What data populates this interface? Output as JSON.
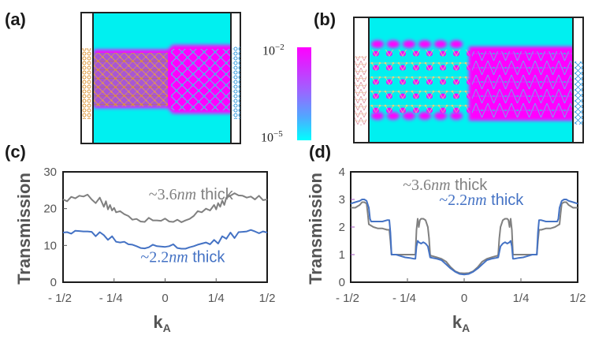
{
  "panels": {
    "a": {
      "label": "(a)"
    },
    "b": {
      "label": "(b)"
    },
    "c": {
      "label": "(c)"
    },
    "d": {
      "label": "(d)"
    }
  },
  "colorbar": {
    "max_label_base": "10",
    "max_label_exp": "−2",
    "min_label_base": "10",
    "min_label_exp": "−5",
    "color_high": "#ff00ff",
    "color_low": "#00ffff",
    "max_value": 0.01,
    "min_value": 1e-05,
    "scale": "log"
  },
  "colors": {
    "thick36": "#808080",
    "thick22": "#4472c4",
    "cyan_background": "#00f0f0",
    "magenta_density": "#ff00ff",
    "left_lead_atoms": "#e09a3a",
    "right_lead_atoms": "#3a9ee0"
  },
  "chart_data": [
    {
      "id": "c",
      "type": "line",
      "title": "",
      "xlabel": "k",
      "xlabel_sub": "A",
      "ylabel": "Transmission",
      "xlim": [
        -0.5,
        0.5
      ],
      "ylim": [
        0,
        30
      ],
      "grid": false,
      "xticks": [
        -0.5,
        -0.25,
        0,
        0.25,
        0.5
      ],
      "xtick_labels": [
        "- 1/2",
        "- 1/4",
        "0",
        "1/4",
        "1/2"
      ],
      "yticks": [
        0,
        10,
        20,
        30
      ],
      "ytick_labels": [
        "0",
        "10",
        "20",
        "30"
      ],
      "annotations": [
        {
          "series": "~3.6nm thick",
          "prefix": "~3.6",
          "italic": "nm",
          "suffix": " thick",
          "x": -0.08,
          "y": 22.5,
          "color": "#808080"
        },
        {
          "series": "~2.2nm thick",
          "prefix": "~2.2",
          "italic": "nm",
          "suffix": " thick",
          "x": -0.12,
          "y": 5.5,
          "color": "#4472c4"
        }
      ],
      "series": [
        {
          "name": "~3.6nm thick",
          "color": "#808080",
          "x": [
            -0.5,
            -0.48,
            -0.46,
            -0.44,
            -0.42,
            -0.4,
            -0.38,
            -0.36,
            -0.34,
            -0.32,
            -0.3,
            -0.29,
            -0.28,
            -0.27,
            -0.26,
            -0.25,
            -0.24,
            -0.22,
            -0.2,
            -0.18,
            -0.16,
            -0.14,
            -0.12,
            -0.1,
            -0.08,
            -0.06,
            -0.04,
            -0.02,
            0.0,
            0.02,
            0.04,
            0.06,
            0.08,
            0.1,
            0.12,
            0.14,
            0.16,
            0.18,
            0.2,
            0.22,
            0.24,
            0.25,
            0.26,
            0.27,
            0.28,
            0.29,
            0.3,
            0.32,
            0.34,
            0.36,
            0.38,
            0.4,
            0.42,
            0.44,
            0.46,
            0.48,
            0.5
          ],
          "y": [
            22.5,
            22.0,
            23.2,
            22.8,
            23.5,
            23.3,
            23.8,
            22.5,
            21.5,
            23.0,
            20.5,
            22.0,
            19.8,
            21.0,
            19.5,
            20.2,
            19.0,
            19.3,
            18.5,
            18.0,
            17.0,
            17.2,
            16.5,
            16.4,
            17.5,
            16.8,
            16.8,
            16.7,
            17.3,
            16.5,
            16.4,
            17.0,
            16.3,
            16.8,
            17.2,
            18.0,
            19.3,
            19.0,
            20.0,
            19.5,
            21.0,
            19.8,
            21.5,
            20.5,
            22.2,
            21.0,
            23.0,
            23.5,
            24.2,
            23.6,
            23.5,
            23.0,
            23.3,
            22.5,
            23.5,
            22.3,
            22.5
          ]
        },
        {
          "name": "~2.2nm thick",
          "color": "#4472c4",
          "x": [
            -0.5,
            -0.48,
            -0.46,
            -0.44,
            -0.42,
            -0.4,
            -0.38,
            -0.36,
            -0.34,
            -0.32,
            -0.3,
            -0.28,
            -0.26,
            -0.24,
            -0.22,
            -0.2,
            -0.18,
            -0.16,
            -0.14,
            -0.12,
            -0.1,
            -0.08,
            -0.06,
            -0.04,
            -0.02,
            0.0,
            0.02,
            0.04,
            0.06,
            0.08,
            0.1,
            0.12,
            0.14,
            0.16,
            0.18,
            0.2,
            0.22,
            0.24,
            0.26,
            0.28,
            0.3,
            0.32,
            0.34,
            0.36,
            0.38,
            0.4,
            0.42,
            0.44,
            0.46,
            0.48,
            0.5
          ],
          "y": [
            13.5,
            13.6,
            13.2,
            14.0,
            13.9,
            13.8,
            13.8,
            13.7,
            12.5,
            13.6,
            12.8,
            11.5,
            12.5,
            11.0,
            10.8,
            11.0,
            10.3,
            10.2,
            9.8,
            9.3,
            9.2,
            9.5,
            10.2,
            9.8,
            9.7,
            9.6,
            9.8,
            10.3,
            9.3,
            9.1,
            9.1,
            9.5,
            9.8,
            10.2,
            10.5,
            10.8,
            10.3,
            11.5,
            10.5,
            12.5,
            11.8,
            13.5,
            12.0,
            13.6,
            13.7,
            13.8,
            14.2,
            13.8,
            13.3,
            13.8,
            13.5
          ]
        }
      ]
    },
    {
      "id": "d",
      "type": "line",
      "title": "",
      "xlabel": "k",
      "xlabel_sub": "A",
      "ylabel": "Transmission",
      "xlim": [
        -0.5,
        0.5
      ],
      "ylim": [
        0,
        4
      ],
      "grid": false,
      "xticks": [
        -0.5,
        -0.25,
        0,
        0.25,
        0.5
      ],
      "xtick_labels": [
        "- 1/2",
        "- 1/4",
        "0",
        "1/4",
        "1/2"
      ],
      "yticks": [
        0,
        1,
        2,
        3,
        4
      ],
      "ytick_labels": [
        "0",
        "1",
        "2",
        "3",
        "4"
      ],
      "annotations": [
        {
          "series": "~3.6nm thick",
          "prefix": "~3.6",
          "italic": "nm",
          "suffix": " thick",
          "x": -0.27,
          "y": 3.35,
          "color": "#808080"
        },
        {
          "series": "~2.2nm thick",
          "prefix": "~2.2",
          "italic": "nm",
          "suffix": " thick",
          "x": -0.11,
          "y": 2.8,
          "color": "#4472c4"
        }
      ],
      "series": [
        {
          "name": "~3.6nm thick",
          "color": "#808080",
          "x": [
            -0.5,
            -0.48,
            -0.46,
            -0.45,
            -0.44,
            -0.43,
            -0.425,
            -0.42,
            -0.4,
            -0.38,
            -0.36,
            -0.34,
            -0.33,
            -0.325,
            -0.32,
            -0.3,
            -0.28,
            -0.26,
            -0.24,
            -0.22,
            -0.215,
            -0.21,
            -0.205,
            -0.2,
            -0.195,
            -0.19,
            -0.18,
            -0.17,
            -0.16,
            -0.155,
            -0.15,
            -0.145,
            -0.14,
            -0.12,
            -0.1,
            -0.08,
            -0.06,
            -0.04,
            -0.02,
            0.0,
            0.02,
            0.04,
            0.06,
            0.08,
            0.1,
            0.12,
            0.14,
            0.145,
            0.15,
            0.155,
            0.16,
            0.17,
            0.18,
            0.19,
            0.195,
            0.2,
            0.205,
            0.21,
            0.215,
            0.22,
            0.24,
            0.26,
            0.28,
            0.3,
            0.32,
            0.325,
            0.33,
            0.34,
            0.36,
            0.38,
            0.4,
            0.42,
            0.425,
            0.43,
            0.44,
            0.45,
            0.46,
            0.48,
            0.5
          ],
          "y": [
            2.7,
            2.7,
            2.8,
            2.9,
            2.9,
            2.85,
            2.5,
            2.1,
            2.0,
            1.95,
            1.95,
            1.9,
            1.9,
            1.5,
            1.0,
            1.0,
            1.0,
            1.0,
            1.0,
            1.0,
            1.0,
            1.9,
            2.3,
            2.0,
            2.25,
            2.3,
            2.3,
            2.25,
            2.0,
            1.6,
            1.0,
            0.95,
            0.95,
            0.9,
            0.85,
            0.75,
            0.55,
            0.4,
            0.33,
            0.32,
            0.33,
            0.4,
            0.55,
            0.75,
            0.85,
            0.9,
            0.95,
            0.95,
            1.0,
            1.6,
            2.0,
            2.25,
            2.3,
            2.3,
            2.25,
            2.0,
            2.3,
            1.9,
            1.0,
            1.0,
            1.0,
            1.0,
            1.0,
            1.0,
            1.0,
            1.5,
            1.9,
            1.9,
            1.95,
            1.95,
            2.0,
            2.1,
            2.5,
            2.85,
            2.9,
            2.9,
            2.8,
            2.7,
            2.7
          ]
        },
        {
          "name": "~2.2nm thick",
          "color": "#4472c4",
          "x": [
            -0.5,
            -0.48,
            -0.46,
            -0.45,
            -0.44,
            -0.43,
            -0.42,
            -0.415,
            -0.41,
            -0.4,
            -0.38,
            -0.36,
            -0.34,
            -0.33,
            -0.325,
            -0.32,
            -0.3,
            -0.28,
            -0.26,
            -0.24,
            -0.22,
            -0.215,
            -0.21,
            -0.205,
            -0.2,
            -0.19,
            -0.18,
            -0.17,
            -0.16,
            -0.155,
            -0.15,
            -0.14,
            -0.12,
            -0.1,
            -0.08,
            -0.06,
            -0.04,
            -0.02,
            0.0,
            0.02,
            0.04,
            0.06,
            0.08,
            0.1,
            0.12,
            0.14,
            0.15,
            0.155,
            0.16,
            0.17,
            0.18,
            0.19,
            0.2,
            0.205,
            0.21,
            0.215,
            0.22,
            0.24,
            0.26,
            0.28,
            0.3,
            0.32,
            0.325,
            0.33,
            0.34,
            0.36,
            0.38,
            0.4,
            0.41,
            0.415,
            0.42,
            0.43,
            0.44,
            0.45,
            0.46,
            0.48,
            0.5
          ],
          "y": [
            2.85,
            2.9,
            2.95,
            3.0,
            3.0,
            2.95,
            2.7,
            2.3,
            2.2,
            2.2,
            2.2,
            2.2,
            2.25,
            2.25,
            1.8,
            1.0,
            1.0,
            0.95,
            0.9,
            0.88,
            0.85,
            0.85,
            1.3,
            1.5,
            1.45,
            1.4,
            1.45,
            1.4,
            1.3,
            1.1,
            0.9,
            0.88,
            0.85,
            0.8,
            0.65,
            0.5,
            0.38,
            0.3,
            0.28,
            0.3,
            0.38,
            0.5,
            0.65,
            0.8,
            0.85,
            0.88,
            0.9,
            1.1,
            1.3,
            1.4,
            1.45,
            1.4,
            1.45,
            1.5,
            1.3,
            0.85,
            0.85,
            0.88,
            0.9,
            0.95,
            1.0,
            1.0,
            1.8,
            2.25,
            2.25,
            2.2,
            2.2,
            2.2,
            2.2,
            2.3,
            2.7,
            2.95,
            3.0,
            3.0,
            2.95,
            2.9,
            2.85
          ]
        }
      ]
    }
  ]
}
